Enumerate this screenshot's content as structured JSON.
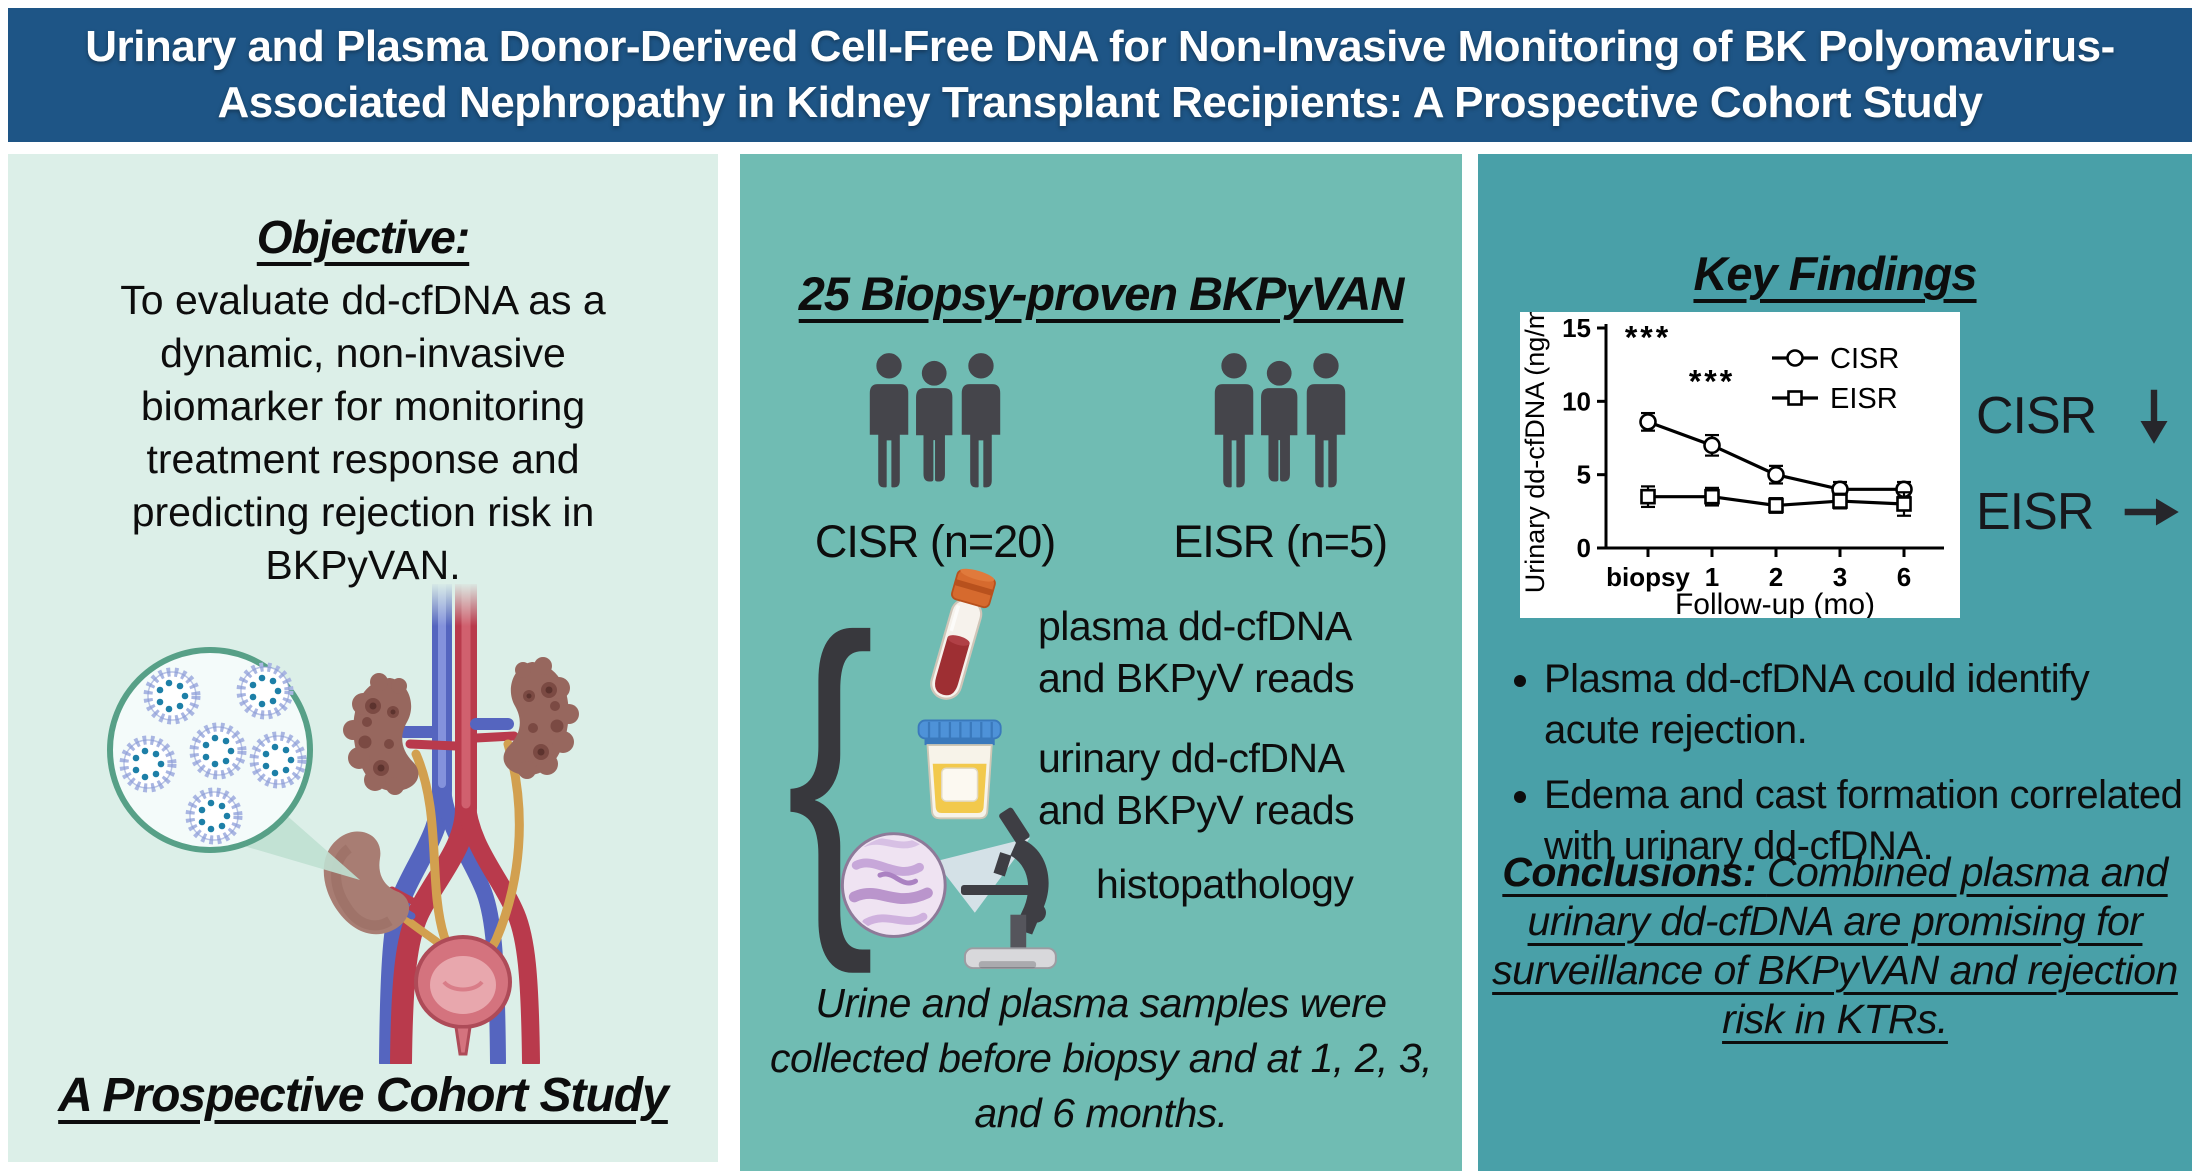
{
  "banner": {
    "title_lines": [
      "Urinary and Plasma Donor-Derived Cell-Free DNA for Non-Invasive Monitoring of BK Polyomavirus-",
      "Associated Nephropathy in Kidney Transplant Recipients: A Prospective Cohort Study"
    ]
  },
  "palette": {
    "banner_bg": "#1E5586",
    "left_bg": "#DCEFE8",
    "middle_bg": "#70BCB3",
    "right_bg": "#49A0A8",
    "ink": "#0D0D0D"
  },
  "left": {
    "objective_heading": "Objective:",
    "objective_body": "To evaluate dd-cfDNA as a dynamic, non-invasive biomarker for monitoring treatment response and predicting rejection risk in BKPyVAN.",
    "illustration": "kidney-transplant-with-bk-virus",
    "footer": "A Prospective Cohort Study"
  },
  "middle": {
    "heading": "25 Biopsy-proven BKPyVAN",
    "cohorts": [
      {
        "label": "CISR (n=20)"
      },
      {
        "label": "EISR (n=5)"
      }
    ],
    "specimens": [
      {
        "icon": "blood-tube-icon",
        "label": "plasma dd-cfDNA and BKPyV reads"
      },
      {
        "icon": "urine-cup-icon",
        "label": "urinary dd-cfDNA and BKPyV reads"
      },
      {
        "icon": "histopathology-microscope-icon",
        "label": "histopathology"
      }
    ],
    "note": "Urine and plasma samples were collected before biopsy and at 1, 2, 3, and 6 months."
  },
  "right": {
    "heading": "Key Findings",
    "trends": [
      {
        "label": "CISR",
        "direction": "down"
      },
      {
        "label": "EISR",
        "direction": "right"
      }
    ],
    "bullets": [
      "Plasma dd-cfDNA could identify acute rejection.",
      "Edema and cast formation correlated with urinary dd-cfDNA."
    ],
    "conclusions_label": "Conclusions:",
    "conclusions_text": "Combined plasma and urinary dd-cfDNA are promising for surveillance of BKPyVAN and rejection risk in KTRs."
  },
  "chart_data": {
    "type": "line",
    "title": "",
    "xlabel": "Follow-up (mo)",
    "ylabel": "Urinary dd-cfDNA (ng/mL)",
    "x_categories": [
      "biopsy",
      "1",
      "2",
      "3",
      "6"
    ],
    "series": [
      {
        "name": "CISR",
        "marker": "circle",
        "values": [
          8.6,
          7.0,
          5.0,
          4.0,
          4.0
        ],
        "errors": [
          0.6,
          0.7,
          0.6,
          0.5,
          0.5
        ]
      },
      {
        "name": "EISR",
        "marker": "square",
        "values": [
          3.5,
          3.5,
          2.9,
          3.2,
          3.0
        ],
        "errors": [
          0.7,
          0.6,
          0.5,
          0.5,
          0.8
        ]
      }
    ],
    "ylim": [
      0,
      15
    ],
    "yticks": [
      0,
      5,
      10,
      15
    ],
    "grid": false,
    "legend_position": "top-right",
    "annotations": [
      {
        "text": "***",
        "x_index": 0,
        "y": 13.6
      },
      {
        "text": "***",
        "x_index": 1,
        "y": 10.6
      }
    ]
  }
}
